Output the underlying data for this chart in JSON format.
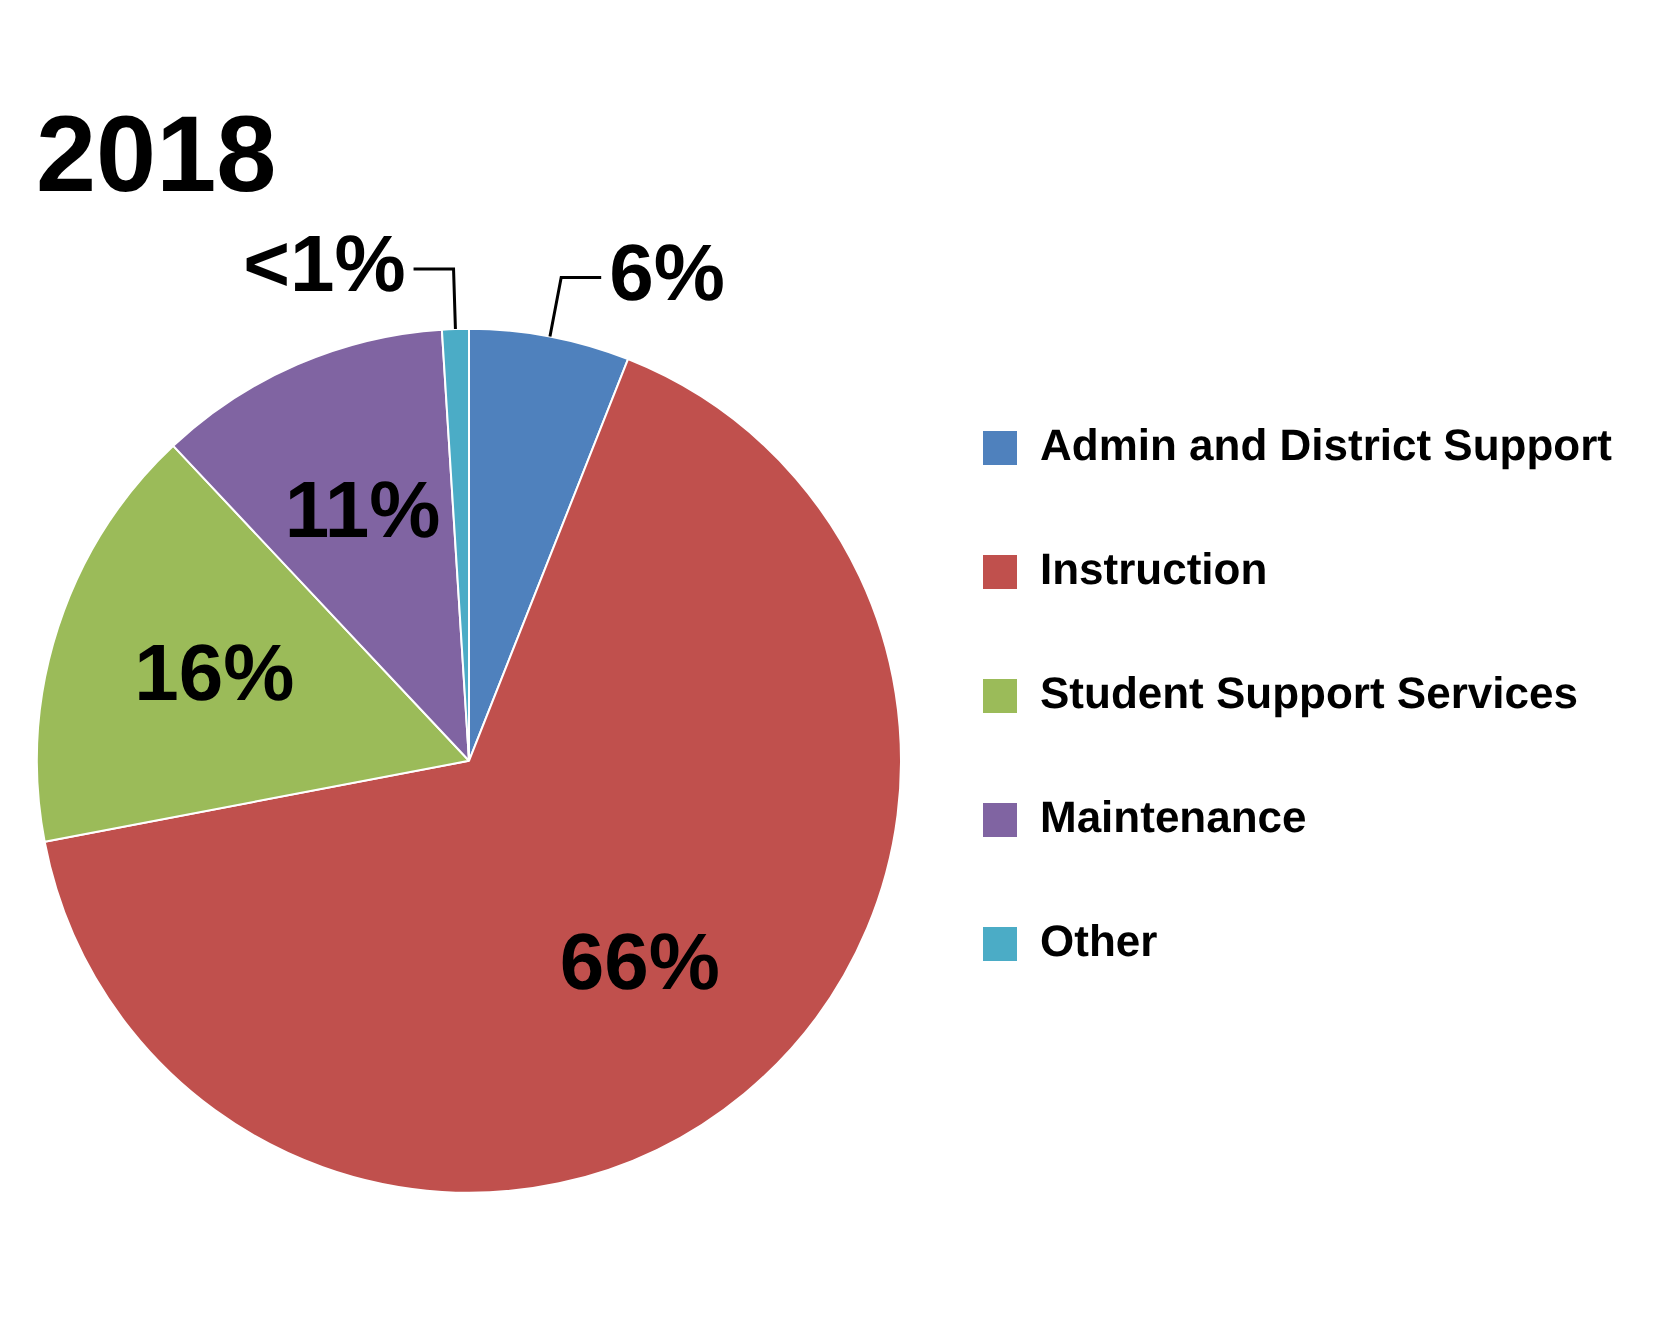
{
  "chart_data": {
    "type": "pie",
    "title": "2018",
    "categories": [
      "Admin and District Support",
      "Instruction",
      "Student Support Services",
      "Maintenance",
      "Other"
    ],
    "values": [
      6,
      66,
      16,
      11,
      1
    ],
    "colors": [
      "#4f81bd",
      "#c0504d",
      "#9bbb59",
      "#8064a2",
      "#4bacc6"
    ],
    "value_labels": [
      "6%",
      "66%",
      "16%",
      "11%",
      "<1%"
    ],
    "legend": "right"
  }
}
